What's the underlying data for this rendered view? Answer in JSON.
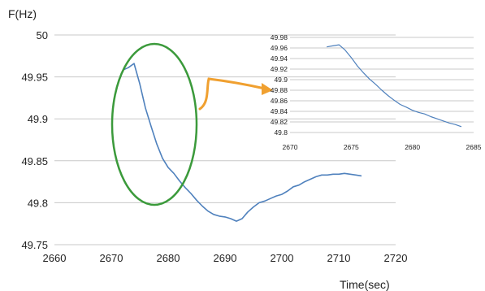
{
  "chart_data": [
    {
      "type": "line",
      "title": "",
      "xlabel": "Time(sec)",
      "ylabel": "F(Hz)",
      "xlim": [
        2660,
        2720
      ],
      "ylim": [
        49.75,
        50
      ],
      "x_ticks": [
        "2660",
        "2670",
        "2680",
        "2690",
        "2700",
        "2710",
        "2720"
      ],
      "y_ticks": [
        "49.75",
        "49.8",
        "49.85",
        "49.9",
        "49.95",
        "50"
      ],
      "grid": "horizontal",
      "series": [
        {
          "color": "#4f81bd",
          "x": [
            2672,
            2673,
            2674,
            2675,
            2676,
            2677,
            2678,
            2679,
            2680,
            2681,
            2682,
            2683,
            2684,
            2685,
            2686,
            2687,
            2688,
            2689,
            2690,
            2691,
            2692,
            2693,
            2694,
            2695,
            2696,
            2697,
            2698,
            2699,
            2700,
            2701,
            2702,
            2703,
            2704,
            2705,
            2706,
            2707,
            2708,
            2709,
            2710,
            2711,
            2712,
            2713,
            2714
          ],
          "y": [
            49.958,
            49.961,
            49.966,
            49.942,
            49.913,
            49.891,
            49.87,
            49.853,
            49.842,
            49.835,
            49.826,
            49.818,
            49.811,
            49.803,
            49.796,
            49.79,
            49.786,
            49.784,
            49.783,
            49.781,
            49.778,
            49.781,
            49.789,
            49.795,
            49.8,
            49.802,
            49.805,
            49.808,
            49.81,
            49.814,
            49.819,
            49.821,
            49.825,
            49.828,
            49.831,
            49.833,
            49.833,
            49.834,
            49.834,
            49.835,
            49.834,
            49.833,
            49.832
          ]
        }
      ],
      "annotation": "ellipse-highlight-2672-2684"
    },
    {
      "type": "line",
      "title": "",
      "xlabel": "",
      "ylabel": "",
      "xlim": [
        2670,
        2685
      ],
      "ylim": [
        49.8,
        49.98
      ],
      "x_ticks": [
        "2670",
        "2675",
        "2680",
        "2685"
      ],
      "y_ticks": [
        "49.8",
        "49.82",
        "49.84",
        "49.86",
        "49.88",
        "49.9",
        "49.92",
        "49.94",
        "49.96",
        "49.98"
      ],
      "grid": "horizontal",
      "series": [
        {
          "color": "#4f81bd",
          "x": [
            2673,
            2673.5,
            2674,
            2674.5,
            2675,
            2675.5,
            2676,
            2676.5,
            2677,
            2677.5,
            2678,
            2678.5,
            2679,
            2679.5,
            2680,
            2680.5,
            2681,
            2681.5,
            2682,
            2682.5,
            2683,
            2683.5,
            2684
          ],
          "y": [
            49.962,
            49.964,
            49.966,
            49.956,
            49.942,
            49.926,
            49.913,
            49.901,
            49.891,
            49.88,
            49.87,
            49.861,
            49.853,
            49.848,
            49.842,
            49.838,
            49.835,
            49.83,
            49.826,
            49.822,
            49.818,
            49.815,
            49.811
          ]
        }
      ]
    }
  ],
  "colors": {
    "ellipse": "#3b9a3b",
    "arrow": "#f0a030",
    "gridline": "#c8c8c8",
    "series": "#4f81bd"
  }
}
